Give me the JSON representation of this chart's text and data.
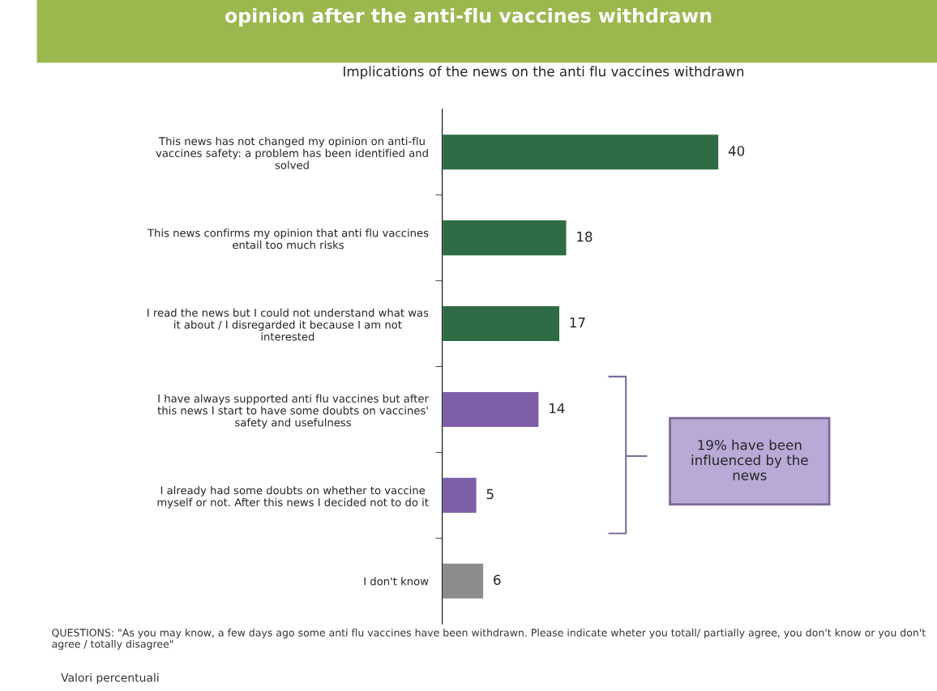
{
  "chart_data": {
    "type": "bar",
    "orientation": "horizontal",
    "title": "opinion after the anti-flu vaccines withdrawn",
    "subtitle": "Implications of the news on the anti flu vaccines withdrawn",
    "categories": [
      "This news has not changed my opinion on anti-flu\nvaccines safety: a problem has been identified and\nsolved",
      "This news confirms my opinion that anti flu vaccines\nentail too much risks",
      "I read the news but I could not understand what was\nit about / I disregarded it because I am not\ninterested",
      "I have always supported anti flu vaccines but after\nthis news I start to have some doubts on vaccines'\nsafety and usefulness",
      "I already had some doubts on whether to vaccine\nmyself or not. After this news I decided not to do it",
      "I don't know"
    ],
    "values": [
      40,
      18,
      17,
      14,
      5,
      6
    ],
    "colors": [
      "#2f6b45",
      "#2f6b45",
      "#2f6b45",
      "#7d5fa8",
      "#7d5fa8",
      "#8c8c8c"
    ],
    "data_labels": true,
    "annotations": [
      "19% have been\ninfluenced by the\nnews",
      "QUESTIONS: \"As you may know, a few days ago some anti flu vaccines have been withdrawn. Please indicate wheter you totall/ partially agree, you don't know or you don't agree / totally disagree\"",
      "Valori percentuali"
    ]
  }
}
